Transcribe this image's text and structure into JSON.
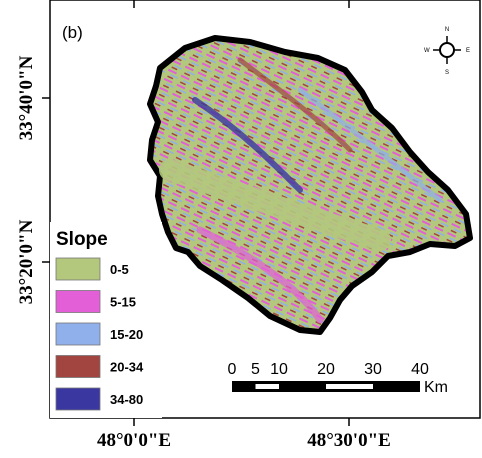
{
  "panel_label": "(b)",
  "latitude_labels": [
    "33°40'0\"N",
    "33°20'0\"N"
  ],
  "longitude_labels": [
    "48°0'0\"E",
    "48°30'0\"E"
  ],
  "legend": {
    "title": "Slope",
    "items": [
      {
        "label": "0-5",
        "color": "#b3c77d"
      },
      {
        "label": "5-15",
        "color": "#e35fd8"
      },
      {
        "label": "15-20",
        "color": "#8fb0ea"
      },
      {
        "label": "20-34",
        "color": "#a2443f"
      },
      {
        "label": "34-80",
        "color": "#3b37a0"
      }
    ]
  },
  "scale_bar": {
    "ticks": [
      0,
      5,
      10,
      20,
      30,
      40
    ],
    "unit": "Km"
  },
  "compass": {
    "north": "N",
    "south": "S",
    "east": "E",
    "west": "W"
  }
}
